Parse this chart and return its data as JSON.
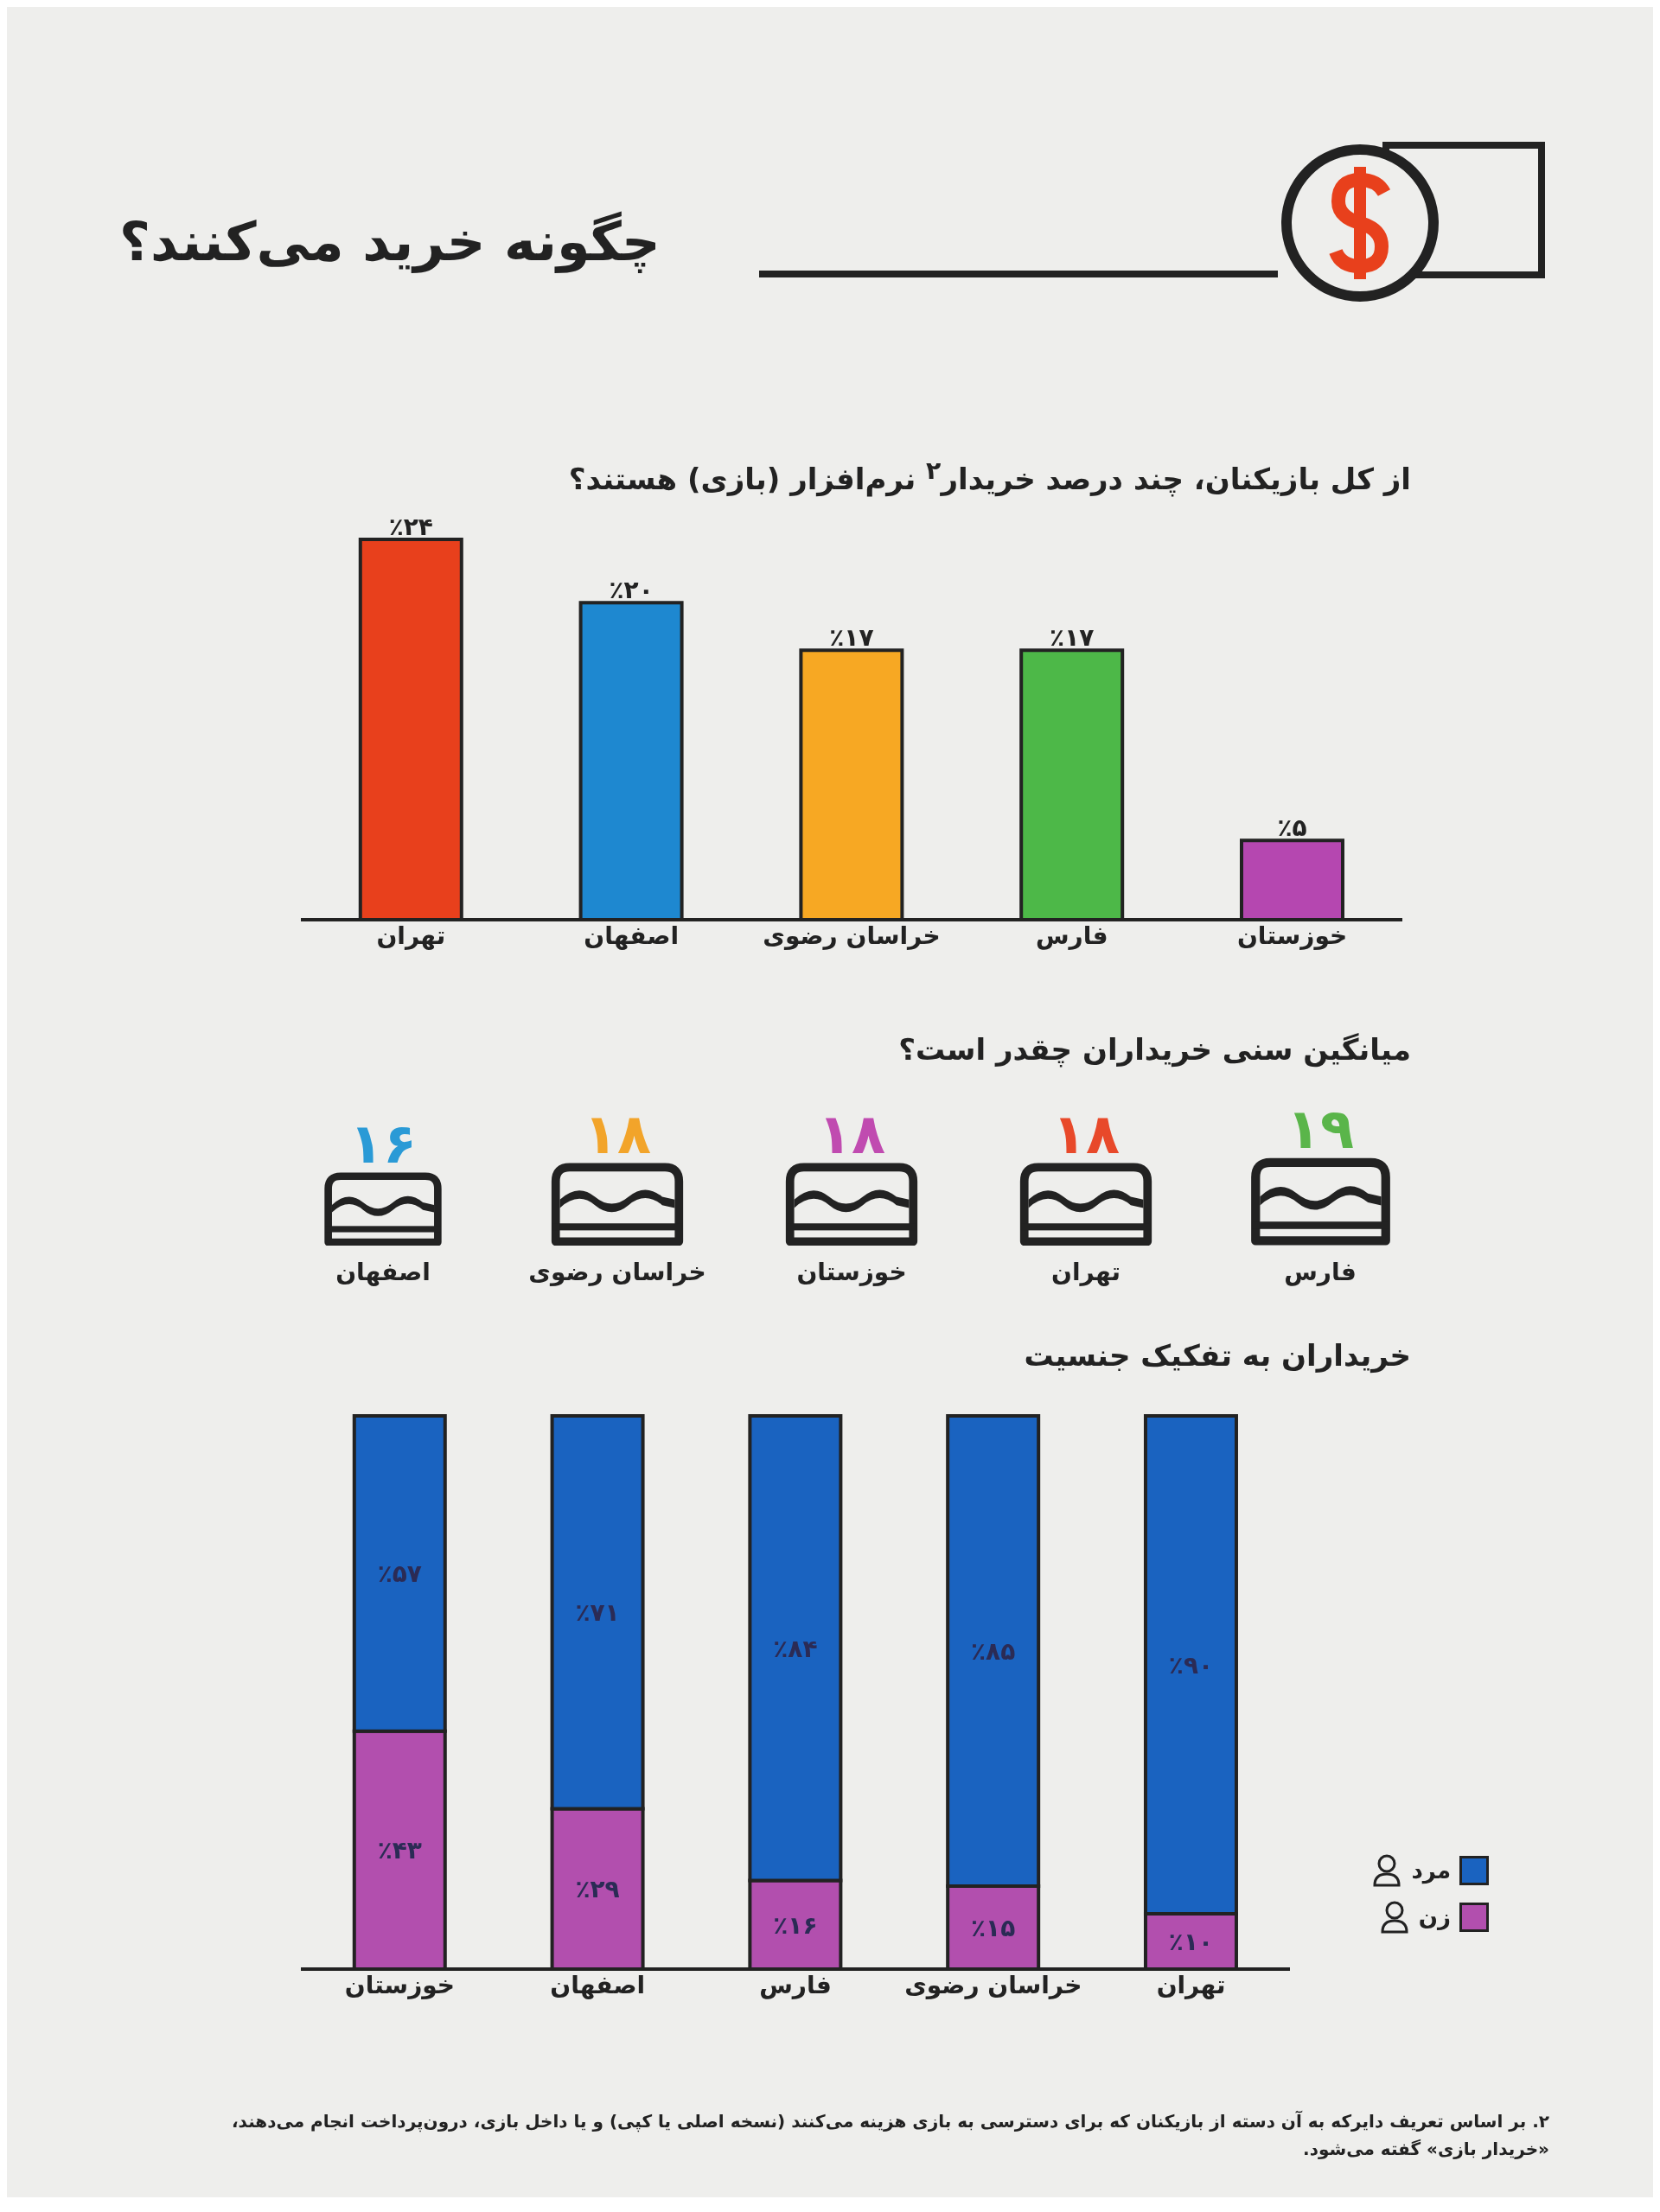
{
  "chart_data": [
    {
      "type": "bar",
      "title": "چگونه خرید می‌کنند؟",
      "subtitle": "از کل بازیکنان، چند درصد خریدار$^{۲}$ نرم‌افزار (بازی) هستند؟",
      "categories": [
        "تهران",
        "اصفهان",
        "خراسان رضوی",
        "فارس",
        "خوزستان"
      ],
      "values": [
        24,
        20,
        17,
        17,
        5
      ],
      "value_labels": [
        "٪۲۴",
        "٪۲۰",
        "٪۱۷",
        "٪۱۷",
        "٪۵"
      ],
      "colors": [
        "#e8401c",
        "#1e88d0",
        "#f7a823",
        "#4db848",
        "#b547b0"
      ],
      "tick_labels": "x"
    },
    {
      "type": "other",
      "subtitle": "میانگین سنی خریداران چقدر است؟",
      "categories": [
        "اصفهان",
        "خراسان رضوی",
        "خوزستان",
        "تهران",
        "فارس"
      ],
      "values": [
        16,
        18,
        18,
        18,
        19
      ],
      "value_labels": [
        "۱۶",
        "۱۸",
        "۱۸",
        "۱۸",
        "۱۹"
      ],
      "colors": [
        "#2a9ad6",
        "#f2a42a",
        "#c04bb0",
        "#e8492a",
        "#5ab54a"
      ]
    },
    {
      "type": "bar",
      "stacked": true,
      "subtitle": "خریداران به تفکیک جنسیت",
      "categories": [
        "خوزستان",
        "اصفهان",
        "فارس",
        "خراسان رضوی",
        "تهران"
      ],
      "series": [
        {
          "name": "زن",
          "color": "#b24fae",
          "values": [
            43,
            29,
            16,
            15,
            10
          ],
          "value_labels": [
            "٪۴۳",
            "٪۲۹",
            "٪۱۶",
            "٪۱۵",
            "٪۱۰"
          ]
        },
        {
          "name": "مرد",
          "color": "#1a63c0",
          "values": [
            57,
            71,
            84,
            85,
            90
          ],
          "value_labels": [
            "٪۵۷",
            "٪۷۱",
            "٪۸۴",
            "٪۸۵",
            "٪۹۰"
          ]
        }
      ],
      "legend": "bottom right",
      "tick_labels": "x",
      "annotations": [
        "۲. بر اساس تعریف دایرکه به آن دسته از بازیکنان که برای دسترسی به بازی هزینه می‌کنند (نسخه اصلی یا کپی) و یا داخل بازی، درون‌پرداخت انجام می‌دهند، «خریدار بازی» گفته می‌شود."
      ]
    }
  ]
}
